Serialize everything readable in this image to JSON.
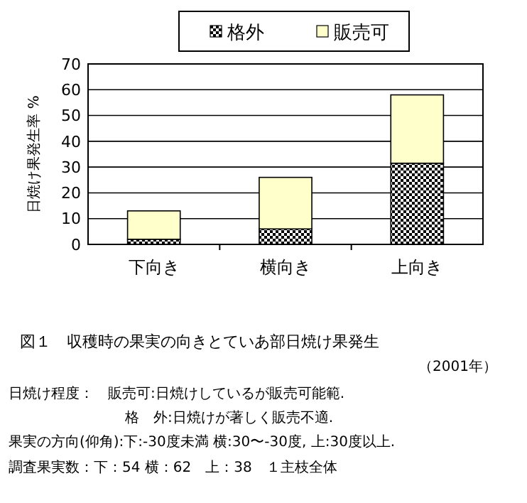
{
  "chart_data": {
    "type": "bar",
    "stacked": true,
    "ylabel": "日焼け果発生率 %",
    "categories": [
      "下向き",
      "横向き",
      "上向き"
    ],
    "series": [
      {
        "name": "格外",
        "color": "#000000",
        "values": [
          2,
          6,
          31.5
        ]
      },
      {
        "name": "販売可",
        "color": "#ffffcc",
        "values": [
          11,
          20,
          26.5
        ]
      }
    ],
    "ylim": [
      0,
      70
    ],
    "yticks": [
      0,
      10,
      20,
      30,
      40,
      50,
      60,
      70
    ],
    "grid": "y",
    "legend": "top",
    "title": "図１　収穫時の果実の向きとていあ部日焼け果発生",
    "subtitle": "（2001年）",
    "annotations": [
      "日焼け程度：　販売可:日焼けしているが販売可能範.",
      "格　外:日焼けが著しく販売不適.",
      "果実の方向(仰角):下:-30度未満 横:30〜-30度, 上:30度以上.",
      "調査果実数：下：54 横：62　上：38　１主枝全体"
    ]
  }
}
